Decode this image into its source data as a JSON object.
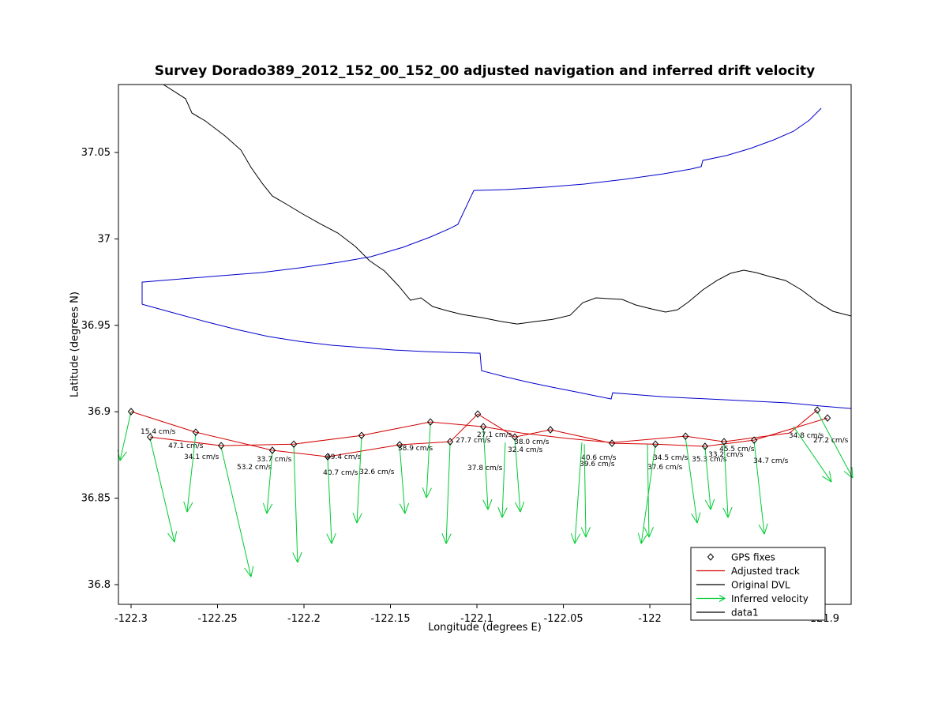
{
  "chart_data": {
    "type": "line",
    "title": "Survey Dorado389_2012_152_00_152_00 adjusted navigation and inferred drift velocity",
    "xlabel": "Longitude (degrees E)",
    "ylabel": "Latitude (degrees N)",
    "xlim": [
      -122.3073,
      -121.8836
    ],
    "ylim": [
      36.7886,
      37.0893
    ],
    "grid": false,
    "x_ticks": {
      "values": [
        -122.3,
        -122.25,
        -122.2,
        -122.15,
        -122.1,
        -122.05,
        -122,
        -121.9
      ],
      "labels": [
        "-122.3",
        "-122.25",
        "-122.2",
        "-122.15",
        "-122.1",
        "-122.05",
        "-122",
        "-121.9"
      ]
    },
    "y_ticks": {
      "values": [
        36.8,
        36.85,
        36.9,
        36.95,
        37,
        37.05
      ],
      "labels": [
        "36.8",
        "36.85",
        "36.9",
        "36.95",
        "37",
        "37.05"
      ]
    },
    "colors": {
      "adjusted_track": "#d40000",
      "original_dvl": "#000000",
      "inferred_velocity": "#00cc33",
      "blue_curve": "#0000cc",
      "gps_fix": "#000000"
    },
    "legend": {
      "position": "lower right",
      "entries": [
        {
          "label": "GPS fixes",
          "marker": "diamond",
          "color": "#000000"
        },
        {
          "label": "Adjusted track",
          "marker": "line",
          "color": "#d40000"
        },
        {
          "label": "Original DVL",
          "marker": "line",
          "color": "#000000"
        },
        {
          "label": "Inferred velocity",
          "marker": "arrow",
          "color": "#00cc33"
        },
        {
          "label": "data1",
          "marker": "line",
          "color": "#000000"
        }
      ]
    },
    "series": [
      {
        "id": "black-line",
        "color": "#000000",
        "width": 1,
        "points": [
          [
            -122.2813,
            37.0893
          ],
          [
            -122.2685,
            37.0811
          ],
          [
            -122.2648,
            37.0728
          ],
          [
            -122.2571,
            37.0683
          ],
          [
            -122.2457,
            37.0596
          ],
          [
            -122.2365,
            37.0514
          ],
          [
            -122.2306,
            37.0413
          ],
          [
            -122.2242,
            37.0322
          ],
          [
            -122.2183,
            37.0248
          ],
          [
            -122.2105,
            37.0203
          ],
          [
            -122.2014,
            37.0148
          ],
          [
            -122.1909,
            37.0089
          ],
          [
            -122.1804,
            37.0034
          ],
          [
            -122.1703,
            36.9956
          ],
          [
            -122.1621,
            36.9874
          ],
          [
            -122.1534,
            36.9814
          ],
          [
            -122.1452,
            36.9727
          ],
          [
            -122.1384,
            36.9645
          ],
          [
            -122.1324,
            36.9659
          ],
          [
            -122.1256,
            36.9609
          ],
          [
            -122.1178,
            36.9586
          ],
          [
            -122.1087,
            36.9563
          ],
          [
            -122.0973,
            36.9545
          ],
          [
            -122.0858,
            36.9522
          ],
          [
            -122.0767,
            36.9508
          ],
          [
            -122.0662,
            36.9522
          ],
          [
            -122.0562,
            36.9535
          ],
          [
            -122.0461,
            36.9558
          ],
          [
            -122.0388,
            36.9631
          ],
          [
            -122.0311,
            36.9659
          ],
          [
            -122.0233,
            36.9654
          ],
          [
            -122.016,
            36.965
          ],
          [
            -122.0082,
            36.9618
          ],
          [
            -121.9991,
            36.9595
          ],
          [
            -121.9909,
            36.9577
          ],
          [
            -121.984,
            36.959
          ],
          [
            -121.9776,
            36.9636
          ],
          [
            -121.9694,
            36.9705
          ],
          [
            -121.9612,
            36.9759
          ],
          [
            -121.9534,
            36.9801
          ],
          [
            -121.9457,
            36.9819
          ],
          [
            -121.9384,
            36.9805
          ],
          [
            -121.9306,
            36.9782
          ],
          [
            -121.9215,
            36.9759
          ],
          [
            -121.9123,
            36.9705
          ],
          [
            -121.9032,
            36.9636
          ],
          [
            -121.8941,
            36.9581
          ],
          [
            -121.8836,
            36.9554
          ]
        ]
      },
      {
        "id": "blue-curve-north",
        "color": "#0000cc",
        "width": 1,
        "points": [
          [
            -122.2936,
            36.9622
          ],
          [
            -122.2936,
            36.975
          ],
          [
            -122.2708,
            36.9769
          ],
          [
            -122.2479,
            36.9787
          ],
          [
            -122.2251,
            36.9805
          ],
          [
            -122.2023,
            36.9833
          ],
          [
            -122.1795,
            36.9865
          ],
          [
            -122.1612,
            36.9897
          ],
          [
            -122.1429,
            36.9951
          ],
          [
            -122.1269,
            37.0011
          ],
          [
            -122.1155,
            37.0061
          ],
          [
            -122.111,
            37.0084
          ],
          [
            -122.1018,
            37.028
          ],
          [
            -122.0836,
            37.0285
          ],
          [
            -122.0607,
            37.0299
          ],
          [
            -122.0379,
            37.0317
          ],
          [
            -122.0151,
            37.0344
          ],
          [
            -121.9923,
            37.0376
          ],
          [
            -121.9763,
            37.0404
          ],
          [
            -121.9703,
            37.0418
          ],
          [
            -121.9694,
            37.0454
          ],
          [
            -121.9557,
            37.0482
          ],
          [
            -121.942,
            37.0523
          ],
          [
            -121.9283,
            37.0573
          ],
          [
            -121.9169,
            37.0623
          ],
          [
            -121.9078,
            37.0687
          ],
          [
            -121.9009,
            37.0756
          ]
        ]
      },
      {
        "id": "blue-curve-south",
        "color": "#0000cc",
        "width": 1,
        "points": [
          [
            -122.2936,
            36.9622
          ],
          [
            -122.2753,
            36.9572
          ],
          [
            -122.2571,
            36.9522
          ],
          [
            -122.2388,
            36.9476
          ],
          [
            -122.2205,
            36.9435
          ],
          [
            -122.2023,
            36.9407
          ],
          [
            -122.184,
            36.9385
          ],
          [
            -122.1658,
            36.9371
          ],
          [
            -122.1475,
            36.9357
          ],
          [
            -122.1292,
            36.9348
          ],
          [
            -122.1133,
            36.9343
          ],
          [
            -122.0982,
            36.9339
          ],
          [
            -122.0973,
            36.9238
          ],
          [
            -122.0836,
            36.9202
          ],
          [
            -122.0699,
            36.917
          ],
          [
            -122.0562,
            36.9142
          ],
          [
            -122.0425,
            36.9115
          ],
          [
            -122.0288,
            36.9087
          ],
          [
            -122.0224,
            36.9074
          ],
          [
            -122.0215,
            36.911
          ],
          [
            -122.0105,
            36.9101
          ],
          [
            -121.9923,
            36.9087
          ],
          [
            -121.974,
            36.9078
          ],
          [
            -121.9557,
            36.9069
          ],
          [
            -121.9375,
            36.906
          ],
          [
            -121.9192,
            36.9051
          ],
          [
            -121.9009,
            36.9033
          ],
          [
            -121.8836,
            36.9019
          ]
        ]
      },
      {
        "id": "adjusted-track-a",
        "color": "#d40000",
        "width": 1,
        "points": [
          [
            -122.3,
            36.9001
          ],
          [
            -122.2626,
            36.8882
          ],
          [
            -122.2183,
            36.8777
          ],
          [
            -122.1863,
            36.874
          ],
          [
            -122.1447,
            36.8809
          ],
          [
            -122.1155,
            36.8827
          ],
          [
            -122.0995,
            36.8987
          ],
          [
            -122.0781,
            36.8854
          ],
          [
            -122.0575,
            36.8896
          ],
          [
            -122.0219,
            36.8818
          ],
          [
            -121.9968,
            36.8813
          ],
          [
            -121.9681,
            36.88
          ],
          [
            -121.9397,
            36.8836
          ],
          [
            -121.8973,
            36.8964
          ]
        ]
      },
      {
        "id": "adjusted-track-b",
        "color": "#d40000",
        "width": 1,
        "points": [
          [
            -122.289,
            36.8854
          ],
          [
            -122.2479,
            36.8804
          ],
          [
            -122.2059,
            36.8813
          ],
          [
            -122.1667,
            36.8863
          ],
          [
            -122.1269,
            36.8941
          ],
          [
            -122.0963,
            36.8914
          ],
          [
            -122.0744,
            36.8877
          ],
          [
            -122.047,
            36.8845
          ],
          [
            -122.0219,
            36.8822
          ],
          [
            -121.9794,
            36.8859
          ],
          [
            -121.9571,
            36.8827
          ],
          [
            -121.9192,
            36.8877
          ],
          [
            -121.9032,
            36.901
          ]
        ]
      }
    ],
    "gps_fixes": [
      [
        -122.3,
        36.9001
      ],
      [
        -122.289,
        36.8854
      ],
      [
        -122.2626,
        36.8882
      ],
      [
        -122.2479,
        36.8804
      ],
      [
        -122.2183,
        36.8777
      ],
      [
        -122.2059,
        36.8813
      ],
      [
        -122.1863,
        36.874
      ],
      [
        -122.1667,
        36.8863
      ],
      [
        -122.1447,
        36.8809
      ],
      [
        -122.1269,
        36.8941
      ],
      [
        -122.1155,
        36.8827
      ],
      [
        -122.0995,
        36.8987
      ],
      [
        -122.0963,
        36.8914
      ],
      [
        -122.0781,
        36.8854
      ],
      [
        -122.0575,
        36.8896
      ],
      [
        -122.0219,
        36.8818
      ],
      [
        -121.9968,
        36.8813
      ],
      [
        -121.9794,
        36.8859
      ],
      [
        -121.9681,
        36.88
      ],
      [
        -121.9571,
        36.8827
      ],
      [
        -121.9397,
        36.8836
      ],
      [
        -121.9032,
        36.901
      ],
      [
        -121.8973,
        36.8964
      ]
    ],
    "velocity_vectors": [
      {
        "label": "15.4 cm/s",
        "start": [
          -122.3,
          36.9001
        ],
        "end": [
          -122.3064,
          36.8717
        ],
        "label_pos": [
          -122.2945,
          36.8891
        ]
      },
      {
        "label": "47.1 cm/s",
        "start": [
          -122.289,
          36.8845
        ],
        "end": [
          -122.2749,
          36.8246
        ],
        "label_pos": [
          -122.2785,
          36.8809
        ]
      },
      {
        "label": "34.1 cm/s",
        "start": [
          -122.2626,
          36.8873
        ],
        "end": [
          -122.2676,
          36.842
        ],
        "label_pos": [
          -122.2694,
          36.8745
        ]
      },
      {
        "label": "53.2 cm/s",
        "start": [
          -122.2479,
          36.8795
        ],
        "end": [
          -122.2306,
          36.8045
        ],
        "label_pos": [
          -122.2388,
          36.8685
        ]
      },
      {
        "label": "33.7 cm/s",
        "start": [
          -122.2183,
          36.8767
        ],
        "end": [
          -122.2215,
          36.8411
        ],
        "label_pos": [
          -122.2274,
          36.8731
        ]
      },
      {
        "label": "40.7 cm/s",
        "start": [
          -122.2059,
          36.8804
        ],
        "end": [
          -122.2037,
          36.8128
        ],
        "label_pos": [
          -122.189,
          36.8653
        ]
      },
      {
        "label": "49.4 cm/s",
        "start": [
          -122.1863,
          36.8731
        ],
        "end": [
          -122.184,
          36.8237
        ],
        "label_pos": [
          -122.1872,
          36.8745
        ]
      },
      {
        "label": "32.6 cm/s",
        "start": [
          -122.1667,
          36.8854
        ],
        "end": [
          -122.1694,
          36.8356
        ],
        "label_pos": [
          -122.168,
          36.8658
        ]
      },
      {
        "label": "38.9 cm/s",
        "start": [
          -122.1447,
          36.8799
        ],
        "end": [
          -122.1416,
          36.8411
        ],
        "label_pos": [
          -122.1457,
          36.8795
        ]
      },
      {
        "label": "37.8 cm/s",
        "start": [
          -122.1155,
          36.8818
        ],
        "end": [
          -122.1178,
          36.8237
        ],
        "label_pos": [
          -122.1055,
          36.8681
        ]
      },
      {
        "label": "27.7 cm/s",
        "start": [
          -122.1269,
          36.8932
        ],
        "end": [
          -122.1292,
          36.8502
        ],
        "label_pos": [
          -122.1123,
          36.8841
        ]
      },
      {
        "label": "27.1 cm/s",
        "start": [
          -122.0963,
          36.8905
        ],
        "end": [
          -122.0936,
          36.8434
        ],
        "label_pos": [
          -122.1,
          36.8873
        ]
      },
      {
        "label": "38.0 cm/s",
        "start": [
          -122.0781,
          36.8845
        ],
        "end": [
          -122.0749,
          36.842
        ],
        "label_pos": [
          -122.0785,
          36.8831
        ]
      },
      {
        "label": "32.4 cm/s",
        "start": [
          -122.0836,
          36.8822
        ],
        "end": [
          -122.0854,
          36.8388
        ],
        "label_pos": [
          -122.0822,
          36.8786
        ]
      },
      {
        "label": "40.6 cm/s",
        "start": [
          -122.0393,
          36.8822
        ],
        "end": [
          -122.0434,
          36.8237
        ],
        "label_pos": [
          -122.0397,
          36.874
        ]
      },
      {
        "label": "39.6 cm/s",
        "start": [
          -122.0379,
          36.8813
        ],
        "end": [
          -122.037,
          36.8274
        ],
        "label_pos": [
          -122.0406,
          36.8703
        ]
      },
      {
        "label": "34.5 cm/s",
        "start": [
          -121.9968,
          36.8809
        ],
        "end": [
          -122.005,
          36.8237
        ],
        "label_pos": [
          -121.9982,
          36.874
        ]
      },
      {
        "label": "37.6 cm/s",
        "start": [
          -122.0014,
          36.8813
        ],
        "end": [
          -122.0005,
          36.8274
        ],
        "label_pos": [
          -122.0014,
          36.8685
        ]
      },
      {
        "label": "35.3 cm/s",
        "start": [
          -121.9794,
          36.885
        ],
        "end": [
          -121.9726,
          36.8356
        ],
        "label_pos": [
          -121.9758,
          36.8731
        ]
      },
      {
        "label": "33.2 cm/s",
        "start": [
          -121.9681,
          36.8795
        ],
        "end": [
          -121.9648,
          36.8434
        ],
        "label_pos": [
          -121.9662,
          36.8758
        ]
      },
      {
        "label": "45.5 cm/s",
        "start": [
          -121.9571,
          36.8818
        ],
        "end": [
          -121.9548,
          36.8388
        ],
        "label_pos": [
          -121.9598,
          36.879
        ]
      },
      {
        "label": "34.7 cm/s",
        "start": [
          -121.9397,
          36.8827
        ],
        "end": [
          -121.9338,
          36.8292
        ],
        "label_pos": [
          -121.9402,
          36.8722
        ]
      },
      {
        "label": "34.8 cm/s",
        "start": [
          -121.9169,
          36.8914
        ],
        "end": [
          -121.895,
          36.8594
        ],
        "label_pos": [
          -121.9197,
          36.8868
        ]
      },
      {
        "label": "27.2 cm/s",
        "start": [
          -121.9032,
          36.9001
        ],
        "end": [
          -121.8827,
          36.8617
        ],
        "label_pos": [
          -121.9055,
          36.8841
        ]
      }
    ]
  }
}
